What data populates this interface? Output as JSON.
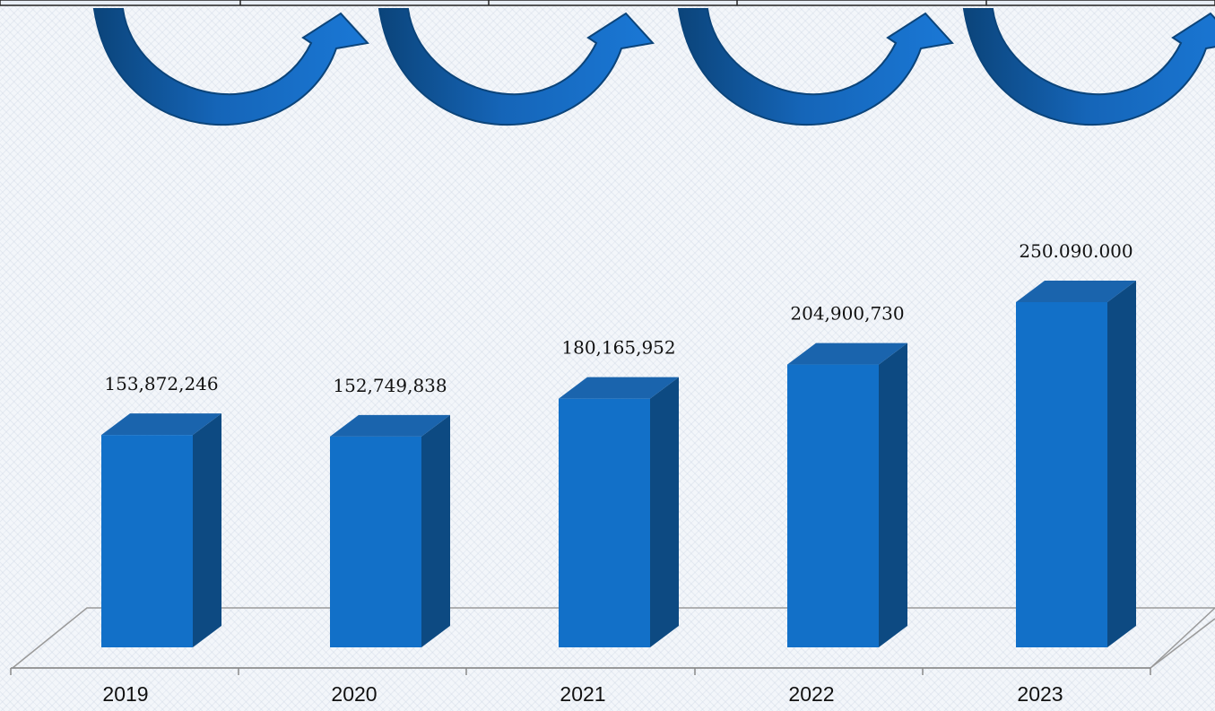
{
  "chart_data": {
    "type": "bar",
    "categories": [
      "2019",
      "2020",
      "2021",
      "2022",
      "2023"
    ],
    "values": [
      153872246,
      152749838,
      180165952,
      204900730,
      250090000
    ],
    "value_labels": [
      "153,872,246",
      "152,749,838",
      "180,165,952",
      "204,900,730",
      "250.090.000"
    ],
    "title": "",
    "xlabel": "",
    "ylabel": "",
    "ylim": [
      0,
      250090000
    ],
    "grid": false,
    "legend": "none",
    "style": "3d-column"
  },
  "colors": {
    "bar_front": "#1270c8",
    "bar_side": "#0d4a82",
    "bar_top": "#1a64ad",
    "arrow": "#1565b8",
    "arrow_dark": "#0b447a",
    "floor_line": "#9a9a9a"
  },
  "decorations": {
    "arrow_count": 4,
    "arrow_icon": "curved-up-arrow-icon"
  }
}
